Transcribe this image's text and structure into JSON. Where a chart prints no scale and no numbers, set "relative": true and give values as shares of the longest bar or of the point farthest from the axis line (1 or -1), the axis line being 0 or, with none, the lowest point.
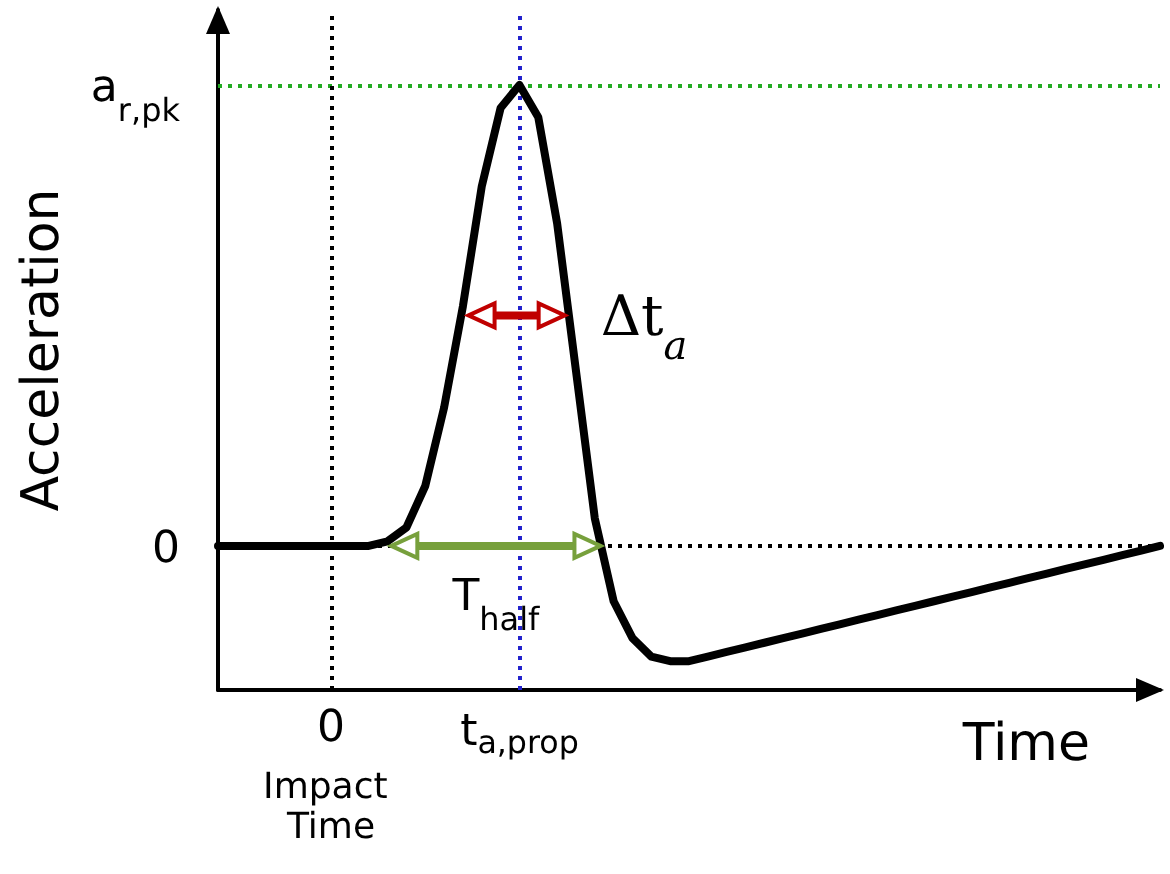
{
  "chart_data": {
    "type": "line",
    "relative": true,
    "xlabel": "Time",
    "ylabel": "Acceleration",
    "categories": [
      null,
      null,
      null,
      null,
      null,
      null,
      "0",
      null,
      null,
      null,
      null,
      null,
      null,
      null,
      null,
      null,
      "t$_{a,prop}$",
      null,
      null,
      null,
      null,
      null,
      null,
      null,
      null,
      null,
      null,
      null,
      null,
      null,
      null,
      null,
      null,
      null,
      null,
      null,
      null,
      null,
      null,
      null,
      null,
      null,
      null,
      null,
      null,
      null,
      null,
      null,
      null,
      null,
      null
    ],
    "series": [
      {
        "color": "#000000",
        "values": [
          0,
          0,
          0,
          0,
          0,
          0,
          0,
          0,
          0,
          0.01,
          0.04,
          0.13,
          0.3,
          0.52,
          0.78,
          0.95,
          1,
          0.93,
          0.7,
          0.38,
          0.06,
          -0.12,
          -0.2,
          -0.24,
          -0.25,
          -0.25,
          -0.24,
          -0.23,
          -0.22,
          -0.21,
          -0.2,
          -0.19,
          -0.18,
          -0.17,
          -0.16,
          -0.15,
          -0.14,
          -0.13,
          -0.12,
          -0.11,
          -0.1,
          -0.09,
          -0.08,
          -0.07,
          -0.06,
          -0.05,
          -0.04,
          -0.03,
          -0.02,
          -0.01,
          0
        ]
      }
    ],
    "ref_lines": [
      {
        "axis": "y",
        "value": 1,
        "label": "a$_{r,pk}$",
        "color": "#22aa22",
        "line_style": "dotted"
      },
      {
        "axis": "y",
        "value": 0,
        "label": "0",
        "color": "#000000",
        "line_style": "dotted"
      },
      {
        "axis": "x",
        "value": "0",
        "label": "Impact Time",
        "color": "#000000",
        "line_style": "dotted"
      },
      {
        "axis": "x",
        "value": "t$_{a,prop}$",
        "label": null,
        "color": "#2222cc",
        "line_style": "dotted"
      }
    ],
    "annotations": [
      "Δt$_{a}$",
      "T$_{half}$"
    ],
    "marker": "none",
    "line_style": "solid",
    "grid": false
  }
}
